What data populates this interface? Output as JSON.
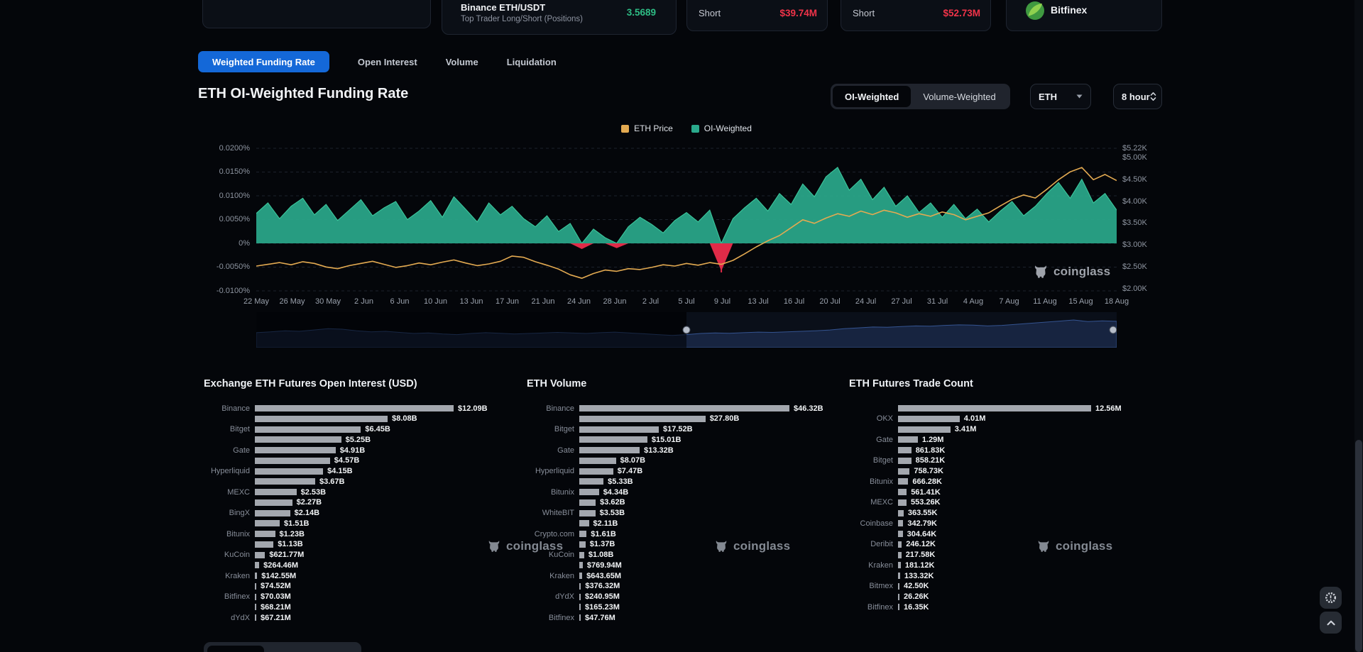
{
  "colors": {
    "background": "#04060a",
    "accent_blue": "#1468d8",
    "positive_green": "#2ebd85",
    "negative_red": "#f03349",
    "series_orange": "#e3aa51",
    "series_teal": "#2aa98c",
    "bar_gray": "#a3a7ae"
  },
  "top_cards": {
    "binance_card": {
      "title": "Binance ETH/USDT",
      "subtitle": "Top Trader Long/Short (Positions)",
      "value": "3.5689"
    },
    "short_card_1": {
      "label": "Short",
      "value": "$39.74M"
    },
    "short_card_2": {
      "label": "Short",
      "value": "$52.73M"
    },
    "exchange_card": {
      "label": "Bitfinex"
    }
  },
  "tabs": {
    "active_index": 0,
    "items": [
      {
        "label": "Weighted Funding Rate"
      },
      {
        "label": "Open Interest"
      },
      {
        "label": "Volume"
      },
      {
        "label": "Liquidation"
      }
    ]
  },
  "header": {
    "title": "ETH OI-Weighted Funding Rate",
    "toggle": [
      "OI-Weighted",
      "Volume-Weighted"
    ],
    "active_toggle": 0,
    "coin": "ETH",
    "interval": "8 hour"
  },
  "legend": [
    {
      "label": "ETH Price",
      "color": "#e3aa51"
    },
    {
      "label": "OI-Weighted",
      "color": "#2aa98c"
    }
  ],
  "watermark": {
    "text": "coinglass"
  },
  "navigator": {
    "selected_range_frac": [
      0.5,
      1.0
    ],
    "values": [
      0.45,
      0.48,
      0.52,
      0.5,
      0.55,
      0.6,
      0.58,
      0.52,
      0.48,
      0.5,
      0.46,
      0.42,
      0.44,
      0.4,
      0.38,
      0.42,
      0.45,
      0.43,
      0.4,
      0.42,
      0.44,
      0.46,
      0.44,
      0.42,
      0.45,
      0.47,
      0.44,
      0.41,
      0.38,
      0.35,
      0.38,
      0.42,
      0.44,
      0.43,
      0.45,
      0.47,
      0.46,
      0.48,
      0.5,
      0.52,
      0.55,
      0.6,
      0.63,
      0.66,
      0.65,
      0.68,
      0.7,
      0.69,
      0.72,
      0.74,
      0.73,
      0.7,
      0.72,
      0.76,
      0.8,
      0.84,
      0.88,
      0.92,
      0.86,
      0.89,
      0.87
    ]
  },
  "chart_data": [
    {
      "type": "line",
      "title": "ETH OI-Weighted Funding Rate",
      "legend_position": "top",
      "grid": "horizontal-dashed",
      "x_labels": [
        "22 May",
        "26 May",
        "30 May",
        "2 Jun",
        "6 Jun",
        "10 Jun",
        "13 Jun",
        "17 Jun",
        "21 Jun",
        "24 Jun",
        "28 Jun",
        "2 Jul",
        "5 Jul",
        "9 Jul",
        "13 Jul",
        "16 Jul",
        "20 Jul",
        "24 Jul",
        "27 Jul",
        "31 Jul",
        "4 Aug",
        "7 Aug",
        "11 Aug",
        "15 Aug",
        "18 Aug"
      ],
      "left_axis": {
        "unit": "%",
        "label_ticks": [
          "0.0200%",
          "0.0150%",
          "0.0100%",
          "0.0050%",
          "0%",
          "-0.0050%",
          "-0.0100%"
        ],
        "tick_values": [
          0.02,
          0.015,
          0.01,
          0.005,
          0,
          -0.005,
          -0.01
        ]
      },
      "right_axis": {
        "unit": "$K",
        "label_ticks": [
          "$5.22K",
          "$5.00K",
          "$4.50K",
          "$4.00K",
          "$3.50K",
          "$3.00K",
          "$2.50K",
          "$2.00K"
        ],
        "tick_values": [
          5.22,
          5.0,
          4.5,
          4.0,
          3.5,
          3.0,
          2.5,
          2.0
        ]
      },
      "negative_color": "#e02b48",
      "liq_marker_index": 40,
      "series": [
        {
          "name": "OI-Weighted",
          "style": "area",
          "color": "#2aa98c",
          "unit": "%",
          "values": [
            0.0063,
            0.0085,
            0.0052,
            0.0078,
            0.0095,
            0.006,
            0.0082,
            0.0048,
            0.007,
            0.0092,
            0.0058,
            0.0075,
            0.0088,
            0.005,
            0.0068,
            0.009,
            0.0055,
            0.0098,
            0.0072,
            0.0045,
            0.0085,
            0.006,
            0.0078,
            0.0052,
            0.0035,
            0.0058,
            0.0025,
            0.0042,
            -0.0012,
            0.003,
            0.0012,
            -0.001,
            0.0035,
            0.0055,
            0.004,
            0.0022,
            0.0048,
            0.0065,
            0.0045,
            0.007,
            -0.0058,
            0.0052,
            0.0075,
            0.0095,
            0.0068,
            0.0105,
            0.0082,
            0.0125,
            0.0098,
            0.014,
            0.016,
            0.0112,
            0.0135,
            0.0092,
            0.0118,
            0.0078,
            0.01,
            0.0065,
            0.0085,
            0.0055,
            0.0082,
            0.0052,
            0.0072,
            0.0045,
            0.0068,
            0.0088,
            0.0058,
            0.0078,
            0.0105,
            0.0128,
            0.0095,
            0.0135,
            0.0085,
            0.0105,
            0.007
          ]
        },
        {
          "name": "ETH Price",
          "style": "line",
          "color": "#e3aa51",
          "unit": "$K",
          "values": [
            2.52,
            2.56,
            2.6,
            2.55,
            2.62,
            2.58,
            2.5,
            2.46,
            2.53,
            2.58,
            2.63,
            2.56,
            2.49,
            2.53,
            2.59,
            2.55,
            2.61,
            2.66,
            2.59,
            2.53,
            2.57,
            2.63,
            2.75,
            2.72,
            2.62,
            2.54,
            2.45,
            2.32,
            2.24,
            2.35,
            2.43,
            2.4,
            2.46,
            2.44,
            2.49,
            2.55,
            2.52,
            2.58,
            2.54,
            2.6,
            2.56,
            2.65,
            2.8,
            2.96,
            3.1,
            3.22,
            3.4,
            3.58,
            3.5,
            3.62,
            3.72,
            3.66,
            3.78,
            3.7,
            3.8,
            3.74,
            3.64,
            3.72,
            3.66,
            3.76,
            3.7,
            3.58,
            3.66,
            3.74,
            3.9,
            4.05,
            4.15,
            4.08,
            4.28,
            4.5,
            4.68,
            4.78,
            4.5,
            4.62,
            4.48
          ]
        }
      ]
    },
    {
      "type": "bar",
      "orientation": "horizontal",
      "title": "Exchange ETH Futures Open Interest (USD)",
      "unit": "USD (billions)",
      "bars": [
        {
          "label": "Binance",
          "display": "$12.09B",
          "value": 12.09
        },
        {
          "label": "",
          "display": "$8.08B",
          "value": 8.08
        },
        {
          "label": "Bitget",
          "display": "$6.45B",
          "value": 6.45
        },
        {
          "label": "",
          "display": "$5.25B",
          "value": 5.25
        },
        {
          "label": "Gate",
          "display": "$4.91B",
          "value": 4.91
        },
        {
          "label": "",
          "display": "$4.57B",
          "value": 4.57
        },
        {
          "label": "Hyperliquid",
          "display": "$4.15B",
          "value": 4.15
        },
        {
          "label": "",
          "display": "$3.67B",
          "value": 3.67
        },
        {
          "label": "MEXC",
          "display": "$2.53B",
          "value": 2.53
        },
        {
          "label": "",
          "display": "$2.27B",
          "value": 2.27
        },
        {
          "label": "BingX",
          "display": "$2.14B",
          "value": 2.14
        },
        {
          "label": "",
          "display": "$1.51B",
          "value": 1.51
        },
        {
          "label": "Bitunix",
          "display": "$1.23B",
          "value": 1.23
        },
        {
          "label": "",
          "display": "$1.13B",
          "value": 1.13
        },
        {
          "label": "KuCoin",
          "display": "$621.77M",
          "value": 0.62177
        },
        {
          "label": "",
          "display": "$264.46M",
          "value": 0.26446
        },
        {
          "label": "Kraken",
          "display": "$142.55M",
          "value": 0.14255
        },
        {
          "label": "",
          "display": "$74.52M",
          "value": 0.07452
        },
        {
          "label": "Bitfinex",
          "display": "$70.03M",
          "value": 0.07003
        },
        {
          "label": "",
          "display": "$68.21M",
          "value": 0.06821
        },
        {
          "label": "dYdX",
          "display": "$67.21M",
          "value": 0.06721
        }
      ]
    },
    {
      "type": "bar",
      "orientation": "horizontal",
      "title": "ETH Volume",
      "unit": "USD (billions)",
      "bars": [
        {
          "label": "Binance",
          "display": "$46.32B",
          "value": 46.32
        },
        {
          "label": "",
          "display": "$27.80B",
          "value": 27.8
        },
        {
          "label": "Bitget",
          "display": "$17.52B",
          "value": 17.52
        },
        {
          "label": "",
          "display": "$15.01B",
          "value": 15.01
        },
        {
          "label": "Gate",
          "display": "$13.32B",
          "value": 13.32
        },
        {
          "label": "",
          "display": "$8.07B",
          "value": 8.07
        },
        {
          "label": "Hyperliquid",
          "display": "$7.47B",
          "value": 7.47
        },
        {
          "label": "",
          "display": "$5.33B",
          "value": 5.33
        },
        {
          "label": "Bitunix",
          "display": "$4.34B",
          "value": 4.34
        },
        {
          "label": "",
          "display": "$3.62B",
          "value": 3.62
        },
        {
          "label": "WhiteBIT",
          "display": "$3.53B",
          "value": 3.53
        },
        {
          "label": "",
          "display": "$2.11B",
          "value": 2.11
        },
        {
          "label": "Crypto.com",
          "display": "$1.61B",
          "value": 1.61
        },
        {
          "label": "",
          "display": "$1.37B",
          "value": 1.37
        },
        {
          "label": "KuCoin",
          "display": "$1.08B",
          "value": 1.08
        },
        {
          "label": "",
          "display": "$769.94M",
          "value": 0.76994
        },
        {
          "label": "Kraken",
          "display": "$643.65M",
          "value": 0.64365
        },
        {
          "label": "",
          "display": "$376.32M",
          "value": 0.37632
        },
        {
          "label": "dYdX",
          "display": "$240.95M",
          "value": 0.24095
        },
        {
          "label": "",
          "display": "$165.23M",
          "value": 0.16523
        },
        {
          "label": "Bitfinex",
          "display": "$47.76M",
          "value": 0.04776
        }
      ]
    },
    {
      "type": "bar",
      "orientation": "horizontal",
      "title": "ETH Futures Trade Count",
      "unit": "trades (millions)",
      "bars": [
        {
          "label": "",
          "display": "12.56M",
          "value": 12.56
        },
        {
          "label": "OKX",
          "display": "4.01M",
          "value": 4.01
        },
        {
          "label": "",
          "display": "3.41M",
          "value": 3.41
        },
        {
          "label": "Gate",
          "display": "1.29M",
          "value": 1.29
        },
        {
          "label": "",
          "display": "861.83K",
          "value": 0.86183
        },
        {
          "label": "Bitget",
          "display": "858.21K",
          "value": 0.85821
        },
        {
          "label": "",
          "display": "758.73K",
          "value": 0.75873
        },
        {
          "label": "Bitunix",
          "display": "666.28K",
          "value": 0.66628
        },
        {
          "label": "",
          "display": "561.41K",
          "value": 0.56141
        },
        {
          "label": "MEXC",
          "display": "553.26K",
          "value": 0.55326
        },
        {
          "label": "",
          "display": "363.55K",
          "value": 0.36355
        },
        {
          "label": "Coinbase",
          "display": "342.79K",
          "value": 0.34279
        },
        {
          "label": "",
          "display": "304.64K",
          "value": 0.30464
        },
        {
          "label": "Deribit",
          "display": "246.12K",
          "value": 0.24612
        },
        {
          "label": "",
          "display": "217.58K",
          "value": 0.21758
        },
        {
          "label": "Kraken",
          "display": "181.12K",
          "value": 0.18112
        },
        {
          "label": "",
          "display": "133.32K",
          "value": 0.13332
        },
        {
          "label": "Bitmex",
          "display": "42.50K",
          "value": 0.0425
        },
        {
          "label": "",
          "display": "26.26K",
          "value": 0.02626
        },
        {
          "label": "Bitfinex",
          "display": "16.35K",
          "value": 0.01635
        }
      ]
    }
  ]
}
